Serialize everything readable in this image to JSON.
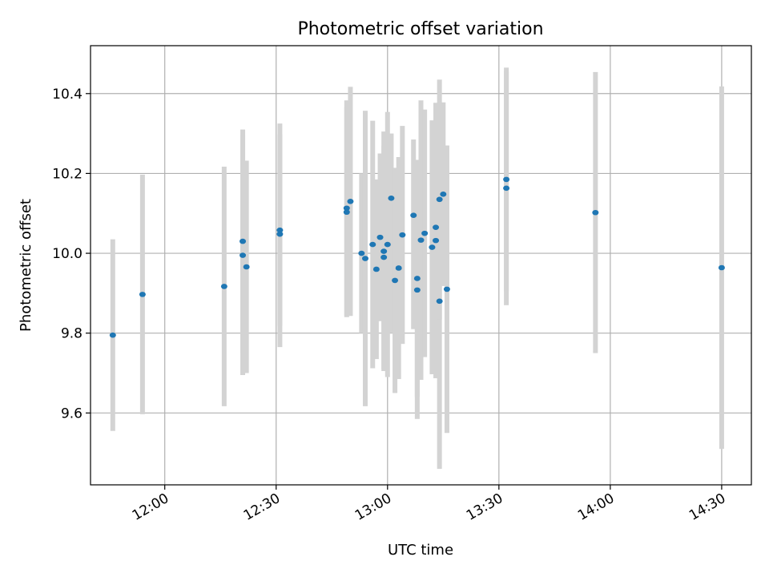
{
  "chart_data": {
    "type": "scatter",
    "title": "Photometric offset variation",
    "xlabel": "UTC time",
    "ylabel": "Photometric offset",
    "x_unit": "UTC time (HH:MM)",
    "xlim": [
      "11:40",
      "14:38"
    ],
    "ylim": [
      9.42,
      10.52
    ],
    "grid": true,
    "x_ticks": [
      "12:00",
      "12:30",
      "13:00",
      "13:30",
      "14:00",
      "14:30"
    ],
    "y_ticks": [
      "9.6",
      "9.8",
      "10.0",
      "10.2",
      "10.4"
    ],
    "colors": {
      "points": "#1f77b4",
      "errorbars": "#d3d3d3",
      "grid": "#b0b0b0"
    },
    "points": [
      {
        "x": "11:46",
        "y": 9.795,
        "ylow": 9.555,
        "yhigh": 10.035
      },
      {
        "x": "11:54",
        "y": 9.897,
        "ylow": 9.597,
        "yhigh": 10.197
      },
      {
        "x": "12:16",
        "y": 9.917,
        "ylow": 9.617,
        "yhigh": 10.217
      },
      {
        "x": "12:21",
        "y": 10.03,
        "ylow": 9.75,
        "yhigh": 10.31
      },
      {
        "x": "12:21",
        "y": 9.995,
        "ylow": 9.695,
        "yhigh": 10.295
      },
      {
        "x": "12:22",
        "y": 9.966,
        "ylow": 9.7,
        "yhigh": 10.232
      },
      {
        "x": "12:31",
        "y": 10.048,
        "ylow": 9.765,
        "yhigh": 10.325
      },
      {
        "x": "12:31",
        "y": 10.058,
        "ylow": 9.818,
        "yhigh": 10.298
      },
      {
        "x": "12:49",
        "y": 10.103,
        "ylow": 9.84,
        "yhigh": 10.365
      },
      {
        "x": "12:49",
        "y": 10.113,
        "ylow": 9.843,
        "yhigh": 10.383
      },
      {
        "x": "12:50",
        "y": 10.13,
        "ylow": 9.843,
        "yhigh": 10.417
      },
      {
        "x": "12:53",
        "y": 10.0,
        "ylow": 9.8,
        "yhigh": 10.2
      },
      {
        "x": "12:54",
        "y": 9.987,
        "ylow": 9.617,
        "yhigh": 10.357
      },
      {
        "x": "12:56",
        "y": 10.022,
        "ylow": 9.712,
        "yhigh": 10.332
      },
      {
        "x": "12:57",
        "y": 9.96,
        "ylow": 9.735,
        "yhigh": 10.185
      },
      {
        "x": "12:58",
        "y": 10.04,
        "ylow": 9.83,
        "yhigh": 10.25
      },
      {
        "x": "12:59",
        "y": 9.99,
        "ylow": 9.71,
        "yhigh": 10.27
      },
      {
        "x": "12:59",
        "y": 10.005,
        "ylow": 9.705,
        "yhigh": 10.305
      },
      {
        "x": "13:00",
        "y": 10.022,
        "ylow": 9.69,
        "yhigh": 10.354
      },
      {
        "x": "13:01",
        "y": 10.138,
        "ylow": 9.8,
        "yhigh": 10.3
      },
      {
        "x": "13:02",
        "y": 9.932,
        "ylow": 9.65,
        "yhigh": 10.214
      },
      {
        "x": "13:03",
        "y": 9.963,
        "ylow": 9.685,
        "yhigh": 10.241
      },
      {
        "x": "13:04",
        "y": 10.046,
        "ylow": 9.773,
        "yhigh": 10.319
      },
      {
        "x": "13:07",
        "y": 10.095,
        "ylow": 9.81,
        "yhigh": 10.285
      },
      {
        "x": "13:08",
        "y": 9.908,
        "ylow": 9.585,
        "yhigh": 10.231
      },
      {
        "x": "13:08",
        "y": 9.937,
        "ylow": 9.64,
        "yhigh": 10.234
      },
      {
        "x": "13:09",
        "y": 10.033,
        "ylow": 9.683,
        "yhigh": 10.383
      },
      {
        "x": "13:10",
        "y": 10.05,
        "ylow": 9.74,
        "yhigh": 10.36
      },
      {
        "x": "13:12",
        "y": 10.015,
        "ylow": 9.697,
        "yhigh": 10.333
      },
      {
        "x": "13:13",
        "y": 10.032,
        "ylow": 9.687,
        "yhigh": 10.377
      },
      {
        "x": "13:13",
        "y": 10.065,
        "ylow": 9.845,
        "yhigh": 10.285
      },
      {
        "x": "13:14",
        "y": 9.88,
        "ylow": 9.46,
        "yhigh": 10.3
      },
      {
        "x": "13:14",
        "y": 10.135,
        "ylow": 9.835,
        "yhigh": 10.435
      },
      {
        "x": "13:15",
        "y": 10.148,
        "ylow": 9.918,
        "yhigh": 10.378
      },
      {
        "x": "13:16",
        "y": 9.91,
        "ylow": 9.55,
        "yhigh": 10.27
      },
      {
        "x": "13:32",
        "y": 10.163,
        "ylow": 9.87,
        "yhigh": 10.456
      },
      {
        "x": "13:32",
        "y": 10.185,
        "ylow": 9.905,
        "yhigh": 10.465
      },
      {
        "x": "13:56",
        "y": 10.102,
        "ylow": 9.75,
        "yhigh": 10.454
      },
      {
        "x": "14:30",
        "y": 9.964,
        "ylow": 9.51,
        "yhigh": 10.418
      }
    ]
  }
}
